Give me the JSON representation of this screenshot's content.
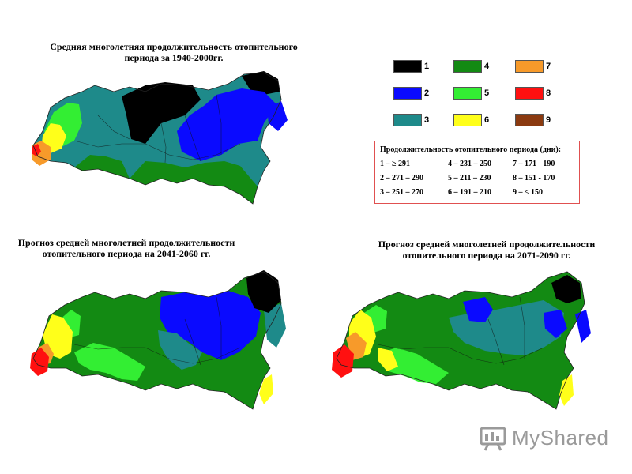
{
  "titles": {
    "map1_line1": "Средняя многолетняя продолжительность отопительного",
    "map1_line2": "периода за 1940-2000гг.",
    "map2_line1": "Прогноз средней многолетней продолжительности",
    "map2_line2": "отопительного периода на 2041-2060 гг.",
    "map3_line1": "Прогноз средней многолетней продолжительности",
    "map3_line2": "отопительного периода на 2071-2090 гг."
  },
  "legend": {
    "classes": [
      {
        "num": "1",
        "color": "#000000"
      },
      {
        "num": "2",
        "color": "#0a0aff"
      },
      {
        "num": "3",
        "color": "#1e8a8a"
      },
      {
        "num": "4",
        "color": "#138a13"
      },
      {
        "num": "5",
        "color": "#33ee33"
      },
      {
        "num": "6",
        "color": "#ffff1a"
      },
      {
        "num": "7",
        "color": "#f79a2a"
      },
      {
        "num": "8",
        "color": "#ff1010"
      },
      {
        "num": "9",
        "color": "#8b3a10"
      }
    ],
    "title": "Продолжительность отопительного периода (дни):",
    "ranges": [
      [
        "1 – ≥ 291",
        "4 – 231 – 250",
        "7 – 171 - 190"
      ],
      [
        "2 – 271 – 290",
        "5 – 211 – 230",
        "8 – 151 - 170"
      ],
      [
        "3 – 251 – 270",
        "6 – 191 – 210",
        "9 – ≤ 150"
      ]
    ]
  },
  "watermark": {
    "text": "MyShared"
  }
}
